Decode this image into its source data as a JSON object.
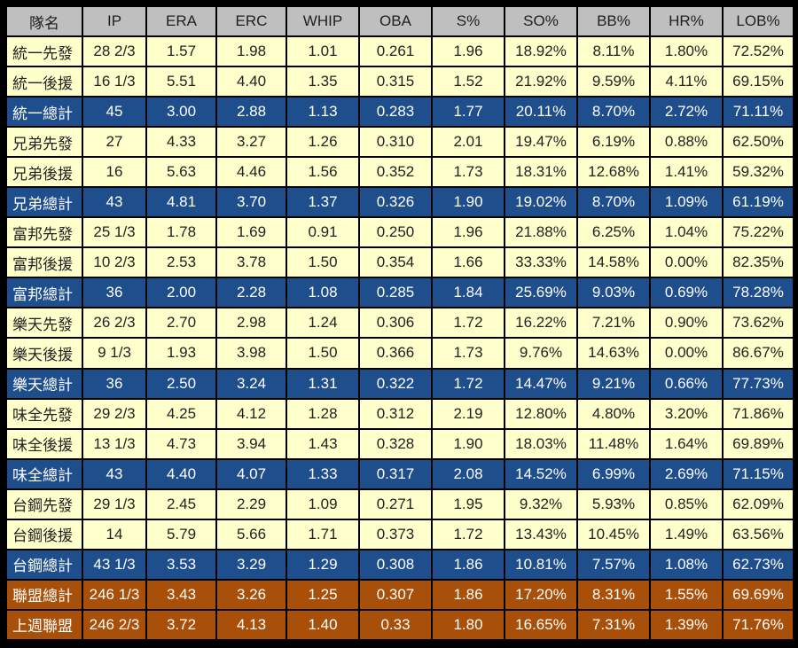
{
  "chart_data": {
    "type": "table",
    "columns": [
      "隊名",
      "IP",
      "ERA",
      "ERC",
      "WHIP",
      "OBA",
      "S%",
      "SO%",
      "BB%",
      "HR%",
      "LOB%"
    ],
    "rows": [
      {
        "kind": "split",
        "cells": [
          "統一先發",
          "28 2/3",
          "1.57",
          "1.98",
          "1.01",
          "0.261",
          "1.96",
          "18.92%",
          "8.11%",
          "1.80%",
          "72.52%"
        ]
      },
      {
        "kind": "split",
        "cells": [
          "統一後援",
          "16 1/3",
          "5.51",
          "4.40",
          "1.35",
          "0.315",
          "1.52",
          "21.92%",
          "9.59%",
          "4.11%",
          "69.15%"
        ]
      },
      {
        "kind": "team",
        "cells": [
          "統一總計",
          "45",
          "3.00",
          "2.88",
          "1.13",
          "0.283",
          "1.77",
          "20.11%",
          "8.70%",
          "2.72%",
          "71.11%"
        ]
      },
      {
        "kind": "split",
        "cells": [
          "兄弟先發",
          "27",
          "4.33",
          "3.27",
          "1.26",
          "0.310",
          "2.01",
          "19.47%",
          "6.19%",
          "0.88%",
          "62.50%"
        ]
      },
      {
        "kind": "split",
        "cells": [
          "兄弟後援",
          "16",
          "5.63",
          "4.46",
          "1.56",
          "0.352",
          "1.73",
          "18.31%",
          "12.68%",
          "1.41%",
          "59.32%"
        ]
      },
      {
        "kind": "team",
        "cells": [
          "兄弟總計",
          "43",
          "4.81",
          "3.70",
          "1.37",
          "0.326",
          "1.90",
          "19.02%",
          "8.70%",
          "1.09%",
          "61.19%"
        ]
      },
      {
        "kind": "split",
        "cells": [
          "富邦先發",
          "25 1/3",
          "1.78",
          "1.69",
          "0.91",
          "0.250",
          "1.96",
          "21.88%",
          "6.25%",
          "1.04%",
          "75.22%"
        ]
      },
      {
        "kind": "split",
        "cells": [
          "富邦後援",
          "10 2/3",
          "2.53",
          "3.78",
          "1.50",
          "0.354",
          "1.66",
          "33.33%",
          "14.58%",
          "0.00%",
          "82.35%"
        ]
      },
      {
        "kind": "team",
        "cells": [
          "富邦總計",
          "36",
          "2.00",
          "2.28",
          "1.08",
          "0.285",
          "1.84",
          "25.69%",
          "9.03%",
          "0.69%",
          "78.28%"
        ]
      },
      {
        "kind": "split",
        "cells": [
          "樂天先發",
          "26 2/3",
          "2.70",
          "2.98",
          "1.24",
          "0.306",
          "1.72",
          "16.22%",
          "7.21%",
          "0.90%",
          "73.62%"
        ]
      },
      {
        "kind": "split",
        "cells": [
          "樂天後援",
          "9 1/3",
          "1.93",
          "3.98",
          "1.50",
          "0.366",
          "1.73",
          "9.76%",
          "14.63%",
          "0.00%",
          "86.67%"
        ]
      },
      {
        "kind": "team",
        "cells": [
          "樂天總計",
          "36",
          "2.50",
          "3.24",
          "1.31",
          "0.322",
          "1.72",
          "14.47%",
          "9.21%",
          "0.66%",
          "77.73%"
        ]
      },
      {
        "kind": "split",
        "cells": [
          "味全先發",
          "29 2/3",
          "4.25",
          "4.12",
          "1.28",
          "0.312",
          "2.19",
          "12.80%",
          "4.80%",
          "3.20%",
          "71.86%"
        ]
      },
      {
        "kind": "split",
        "cells": [
          "味全後援",
          "13 1/3",
          "4.73",
          "3.94",
          "1.43",
          "0.328",
          "1.90",
          "18.03%",
          "11.48%",
          "1.64%",
          "69.89%"
        ]
      },
      {
        "kind": "team",
        "cells": [
          "味全總計",
          "43",
          "4.40",
          "4.07",
          "1.33",
          "0.317",
          "2.08",
          "14.52%",
          "6.99%",
          "2.69%",
          "71.15%"
        ]
      },
      {
        "kind": "split",
        "cells": [
          "台鋼先發",
          "29 1/3",
          "2.45",
          "2.29",
          "1.09",
          "0.271",
          "1.95",
          "9.32%",
          "5.93%",
          "0.85%",
          "62.09%"
        ]
      },
      {
        "kind": "split",
        "cells": [
          "台鋼後援",
          "14",
          "5.79",
          "5.66",
          "1.71",
          "0.373",
          "1.72",
          "13.43%",
          "10.45%",
          "1.49%",
          "63.56%"
        ]
      },
      {
        "kind": "team",
        "cells": [
          "台鋼總計",
          "43 1/3",
          "3.53",
          "3.29",
          "1.29",
          "0.308",
          "1.86",
          "10.81%",
          "7.57%",
          "1.08%",
          "62.73%"
        ]
      },
      {
        "kind": "league",
        "cells": [
          "聯盟總計",
          "246 1/3",
          "3.43",
          "3.26",
          "1.25",
          "0.307",
          "1.86",
          "17.20%",
          "8.31%",
          "1.55%",
          "69.69%"
        ]
      },
      {
        "kind": "league",
        "cells": [
          "上週聯盟",
          "246 2/3",
          "3.72",
          "4.13",
          "1.40",
          "0.33",
          "1.80",
          "16.65%",
          "7.31%",
          "1.39%",
          "71.76%"
        ]
      }
    ]
  },
  "colors": {
    "background": "#000000",
    "header": "#bfbfbf",
    "split_row": "#ffffcc",
    "team_total_row": "#1f4e8c",
    "league_row": "#a8500a"
  }
}
